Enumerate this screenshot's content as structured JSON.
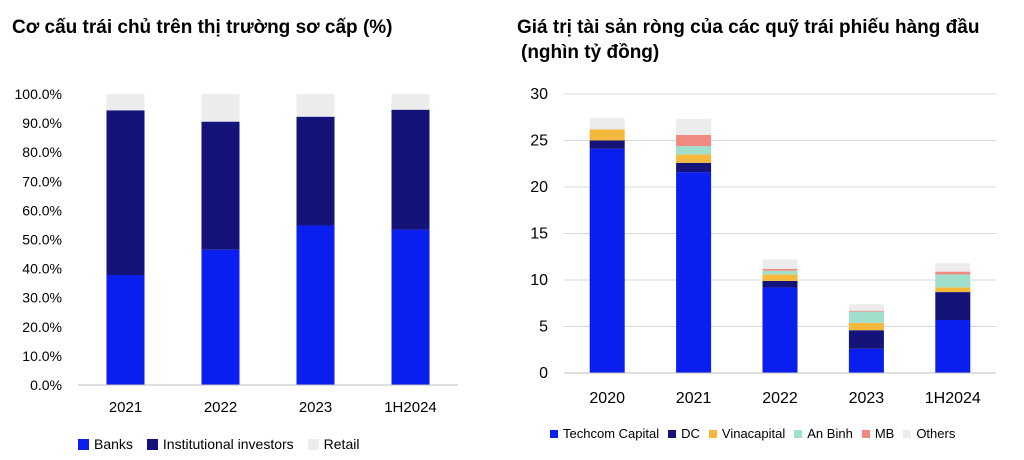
{
  "chart_data": [
    {
      "type": "bar",
      "stacked": true,
      "title": "Cơ cấu trái chủ trên thị trường sơ cấp (%)",
      "categories": [
        "2021",
        "2022",
        "2023",
        "1H2024"
      ],
      "series": [
        {
          "name": "Banks",
          "color": "#0a1ef0",
          "values": [
            37.8,
            46.5,
            54.8,
            53.4
          ]
        },
        {
          "name": "Institutional investors",
          "color": "#13137a",
          "values": [
            56.6,
            44.0,
            37.4,
            41.2
          ]
        },
        {
          "name": "Retail",
          "color": "#ececec",
          "values": [
            5.6,
            9.5,
            7.8,
            5.4
          ]
        }
      ],
      "ylim": [
        0,
        100
      ],
      "yticks": [
        0,
        10,
        20,
        30,
        40,
        50,
        60,
        70,
        80,
        90,
        100
      ],
      "ytick_labels": [
        "0.0%",
        "10.0%",
        "20.0%",
        "30.0%",
        "40.0%",
        "50.0%",
        "60.0%",
        "70.0%",
        "80.0%",
        "90.0%",
        "100.0%"
      ],
      "grid": false,
      "legend_position": "bottom"
    },
    {
      "type": "bar",
      "stacked": true,
      "title_lines": [
        "Giá trị tài sản ròng của các quỹ trái phiếu hàng đầu",
        "(nghìn tỷ đồng)"
      ],
      "categories": [
        "2020",
        "2021",
        "2022",
        "2023",
        "1H2024"
      ],
      "series": [
        {
          "name": "Techcom Capital",
          "color": "#0a1ef0",
          "values": [
            24.1,
            21.6,
            9.2,
            2.6,
            5.7
          ]
        },
        {
          "name": "DC",
          "color": "#13137a",
          "values": [
            0.9,
            1.0,
            0.7,
            2.0,
            3.0
          ]
        },
        {
          "name": "Vinacapital",
          "color": "#f4b93c",
          "values": [
            1.2,
            0.9,
            0.7,
            0.8,
            0.5
          ]
        },
        {
          "name": "An Binh",
          "color": "#9fdfcc",
          "values": [
            0.0,
            0.9,
            0.4,
            1.2,
            1.4
          ]
        },
        {
          "name": "MB",
          "color": "#f08a80",
          "values": [
            0.0,
            1.2,
            0.2,
            0.1,
            0.3
          ]
        },
        {
          "name": "Others",
          "color": "#ececec",
          "values": [
            1.2,
            1.7,
            1.0,
            0.7,
            0.9
          ]
        }
      ],
      "ylim": [
        0,
        30
      ],
      "yticks": [
        0,
        5,
        10,
        15,
        20,
        25,
        30
      ],
      "grid": true,
      "legend_position": "bottom"
    }
  ]
}
